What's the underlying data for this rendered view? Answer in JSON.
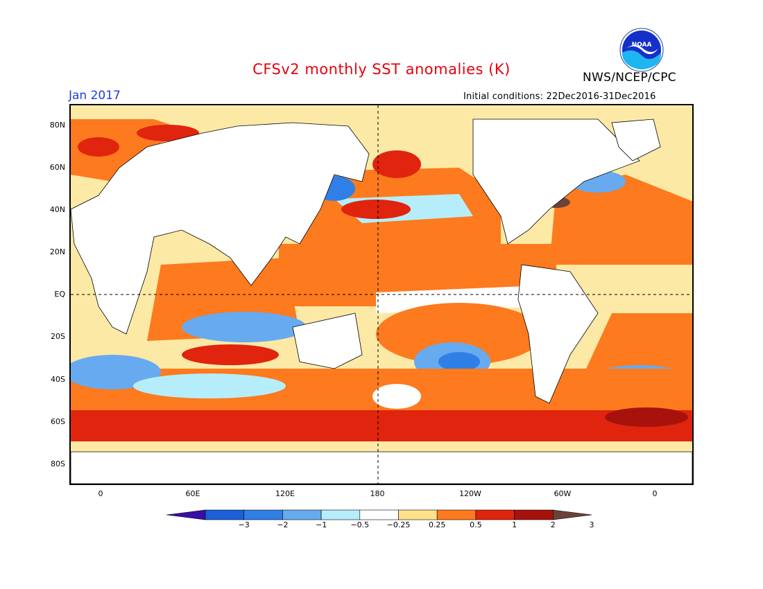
{
  "title": "CFSv2 monthly SST anomalies (K)",
  "date": "Jan 2017",
  "agency": "NWS/NCEP/CPC",
  "initial_conditions": "Initial conditions: 22Dec2016-31Dec2016",
  "logo": {
    "text": "NOAA",
    "icon": "noaa-logo"
  },
  "map": {
    "lat_labels": [
      "80N",
      "60N",
      "40N",
      "20N",
      "EQ",
      "20S",
      "40S",
      "60S",
      "80S"
    ],
    "lon_labels": [
      "0",
      "60E",
      "120E",
      "180",
      "120W",
      "60W",
      "0"
    ],
    "reference_lines": [
      "equator",
      "180"
    ]
  },
  "colorbar": {
    "labels": [
      "-3",
      "-2",
      "-1",
      "-0.5",
      "-0.25",
      "0.25",
      "0.5",
      "1",
      "2",
      "3"
    ],
    "colors": [
      "#3b0ea6",
      "#1c5fd8",
      "#2f7fe6",
      "#67aaf0",
      "#b5eefa",
      "#ffffff",
      "#fde28a",
      "#fd7a1e",
      "#e0240e",
      "#a8120c",
      "#6b4238"
    ]
  },
  "colors": {
    "title": "#e8000b",
    "date": "#1d3fd8",
    "land": "#ffffff"
  }
}
